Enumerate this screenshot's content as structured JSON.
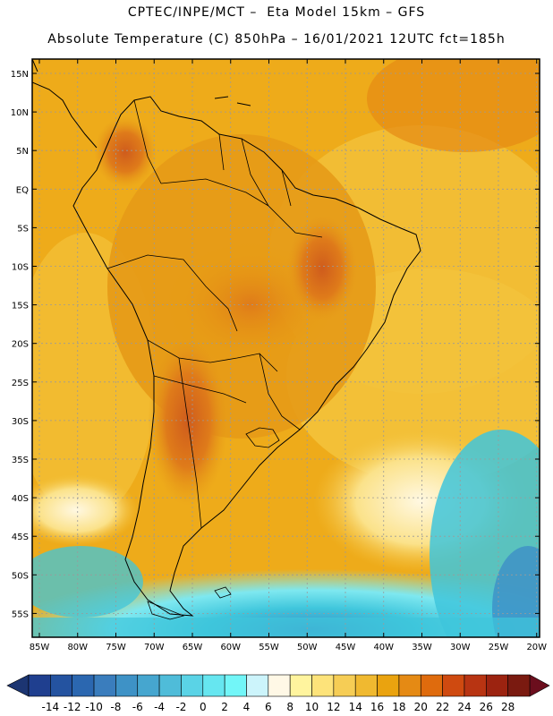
{
  "header": {
    "line1": "CPTEC/INPE/MCT –  Eta Model 15km – GFS",
    "line2": "Absolute Temperature (C) 850hPa – 16/01/2021 12UTC fct=185h"
  },
  "map": {
    "lat_labels": [
      "15N",
      "10N",
      "5N",
      "EQ",
      "5S",
      "10S",
      "15S",
      "20S",
      "25S",
      "30S",
      "35S",
      "40S",
      "45S",
      "50S",
      "55S"
    ],
    "lon_labels": [
      "85W",
      "80W",
      "75W",
      "70W",
      "65W",
      "60W",
      "55W",
      "50W",
      "45W",
      "40W",
      "35W",
      "30W",
      "25W",
      "20W"
    ]
  },
  "colorbar": {
    "labels": [
      "-14",
      "-12",
      "-10",
      "-8",
      "-6",
      "-4",
      "-2",
      "0",
      "2",
      "4",
      "6",
      "8",
      "10",
      "12",
      "14",
      "16",
      "18",
      "20",
      "22",
      "24",
      "26",
      "28"
    ],
    "colors": [
      "#1f3f8f",
      "#2453a0",
      "#2b67b0",
      "#3a7dbd",
      "#3e92c6",
      "#46a6cf",
      "#4fbcd9",
      "#5ad3e6",
      "#66e6f0",
      "#72f6f8",
      "#ccf4fb",
      "#fff8e6",
      "#fff49e",
      "#fde37a",
      "#f6cd55",
      "#f0b930",
      "#eaa30f",
      "#e58a14",
      "#df6b0d",
      "#cf4a10",
      "#b83412",
      "#9c2310",
      "#7a1a10"
    ],
    "left_arrow_color": "#1c3572",
    "right_arrow_color": "#6b0e1d"
  },
  "palette": {
    "ocean_warm": "#eeab1a",
    "ocean_mid": "#f3c23b",
    "land_warm": "#e69a17",
    "hot": "#df7b1a",
    "hottest": "#cf5c1c",
    "cool_yellow": "#fbe28a",
    "pale": "#fff8e2",
    "cyan_light": "#7ee8f0",
    "cyan": "#3fc6dc",
    "blue": "#3d8fc7",
    "border": "#000000",
    "grid": "#9a9a9a"
  }
}
